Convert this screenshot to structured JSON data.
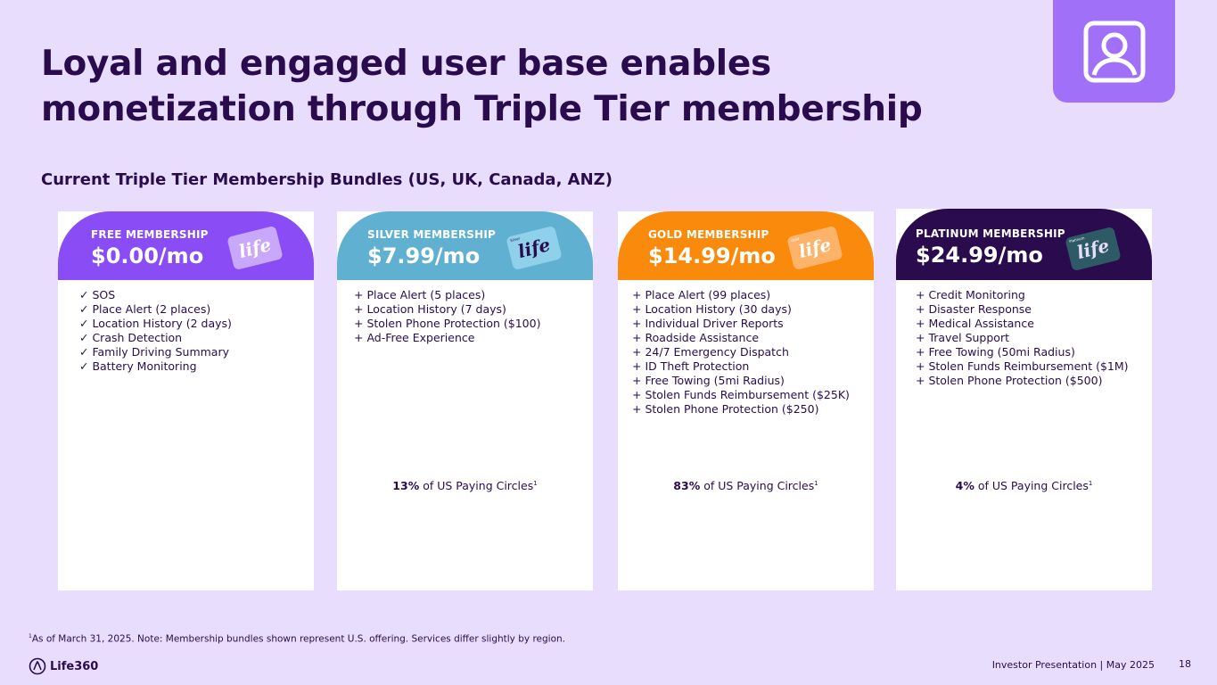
{
  "title": {
    "line1": "Loyal and engaged user base enables",
    "line2": "monetization through Triple Tier membership"
  },
  "subtitle": "Current Triple Tier Membership Bundles (US, UK, Canada, ANZ)",
  "colors": {
    "background": "#E9DDFD",
    "text": "#2A0C4E",
    "free": "#8A4CF4",
    "silver": "#5FB0D1",
    "gold": "#FA8A0C",
    "platinum": "#2A0C4E",
    "accent_box": "#A070F8"
  },
  "plans": [
    {
      "name": "FREE MEMBERSHIP",
      "price": "$0.00/mo",
      "card_label": "life",
      "features": [
        "✓ SOS",
        "✓ Place Alert (2 places)",
        "✓ Location History (2 days)",
        "✓ Crash Detection",
        "✓ Family Driving Summary",
        "✓ Battery Monitoring"
      ],
      "share_pct": "",
      "share_text": ""
    },
    {
      "name": "SILVER MEMBERSHIP",
      "price": "$7.99/mo",
      "card_label": "life",
      "card_tag": "Silver",
      "features": [
        "+ Place Alert (5 places)",
        "+ Location History (7 days)",
        "+ Stolen Phone Protection ($100)",
        "+ Ad-Free Experience"
      ],
      "share_pct": "13%",
      "share_text": " of US Paying Circles",
      "share_sup": "1"
    },
    {
      "name": "GOLD MEMBERSHIP",
      "price": "$14.99/mo",
      "card_label": "life",
      "card_tag": "Gold",
      "features": [
        "+ Place Alert (99 places)",
        "+ Location History (30 days)",
        "+ Individual Driver Reports",
        "+ Roadside Assistance",
        "+ 24/7 Emergency Dispatch",
        "+ ID Theft Protection",
        "+ Free Towing (5mi Radius)",
        "+ Stolen Funds Reimbursement ($25K)",
        "+ Stolen Phone Protection ($250)"
      ],
      "share_pct": "83%",
      "share_text": " of US Paying Circles",
      "share_sup": "1"
    },
    {
      "name": "PLATINUM MEMBERSHIP",
      "price": "$24.99/mo",
      "card_label": "life",
      "card_tag": "Platinum",
      "features": [
        "+ Credit Monitoring",
        "+ Disaster Response",
        "+ Medical Assistance",
        "+ Travel Support",
        "+ Free Towing (50mi Radius)",
        "+ Stolen Funds Reimbursement ($1M)",
        "+ Stolen Phone Protection ($500)"
      ],
      "share_pct": "4%",
      "share_text": " of US Paying Circles",
      "share_sup": "1"
    }
  ],
  "footnote": {
    "sup": "1",
    "text": "As of March 31, 2025. Note: Membership bundles shown represent U.S. offering.  Services differ slightly by region."
  },
  "brand": "Life360",
  "footer": "Investor Presentation  | May 2025",
  "page_number": "18"
}
